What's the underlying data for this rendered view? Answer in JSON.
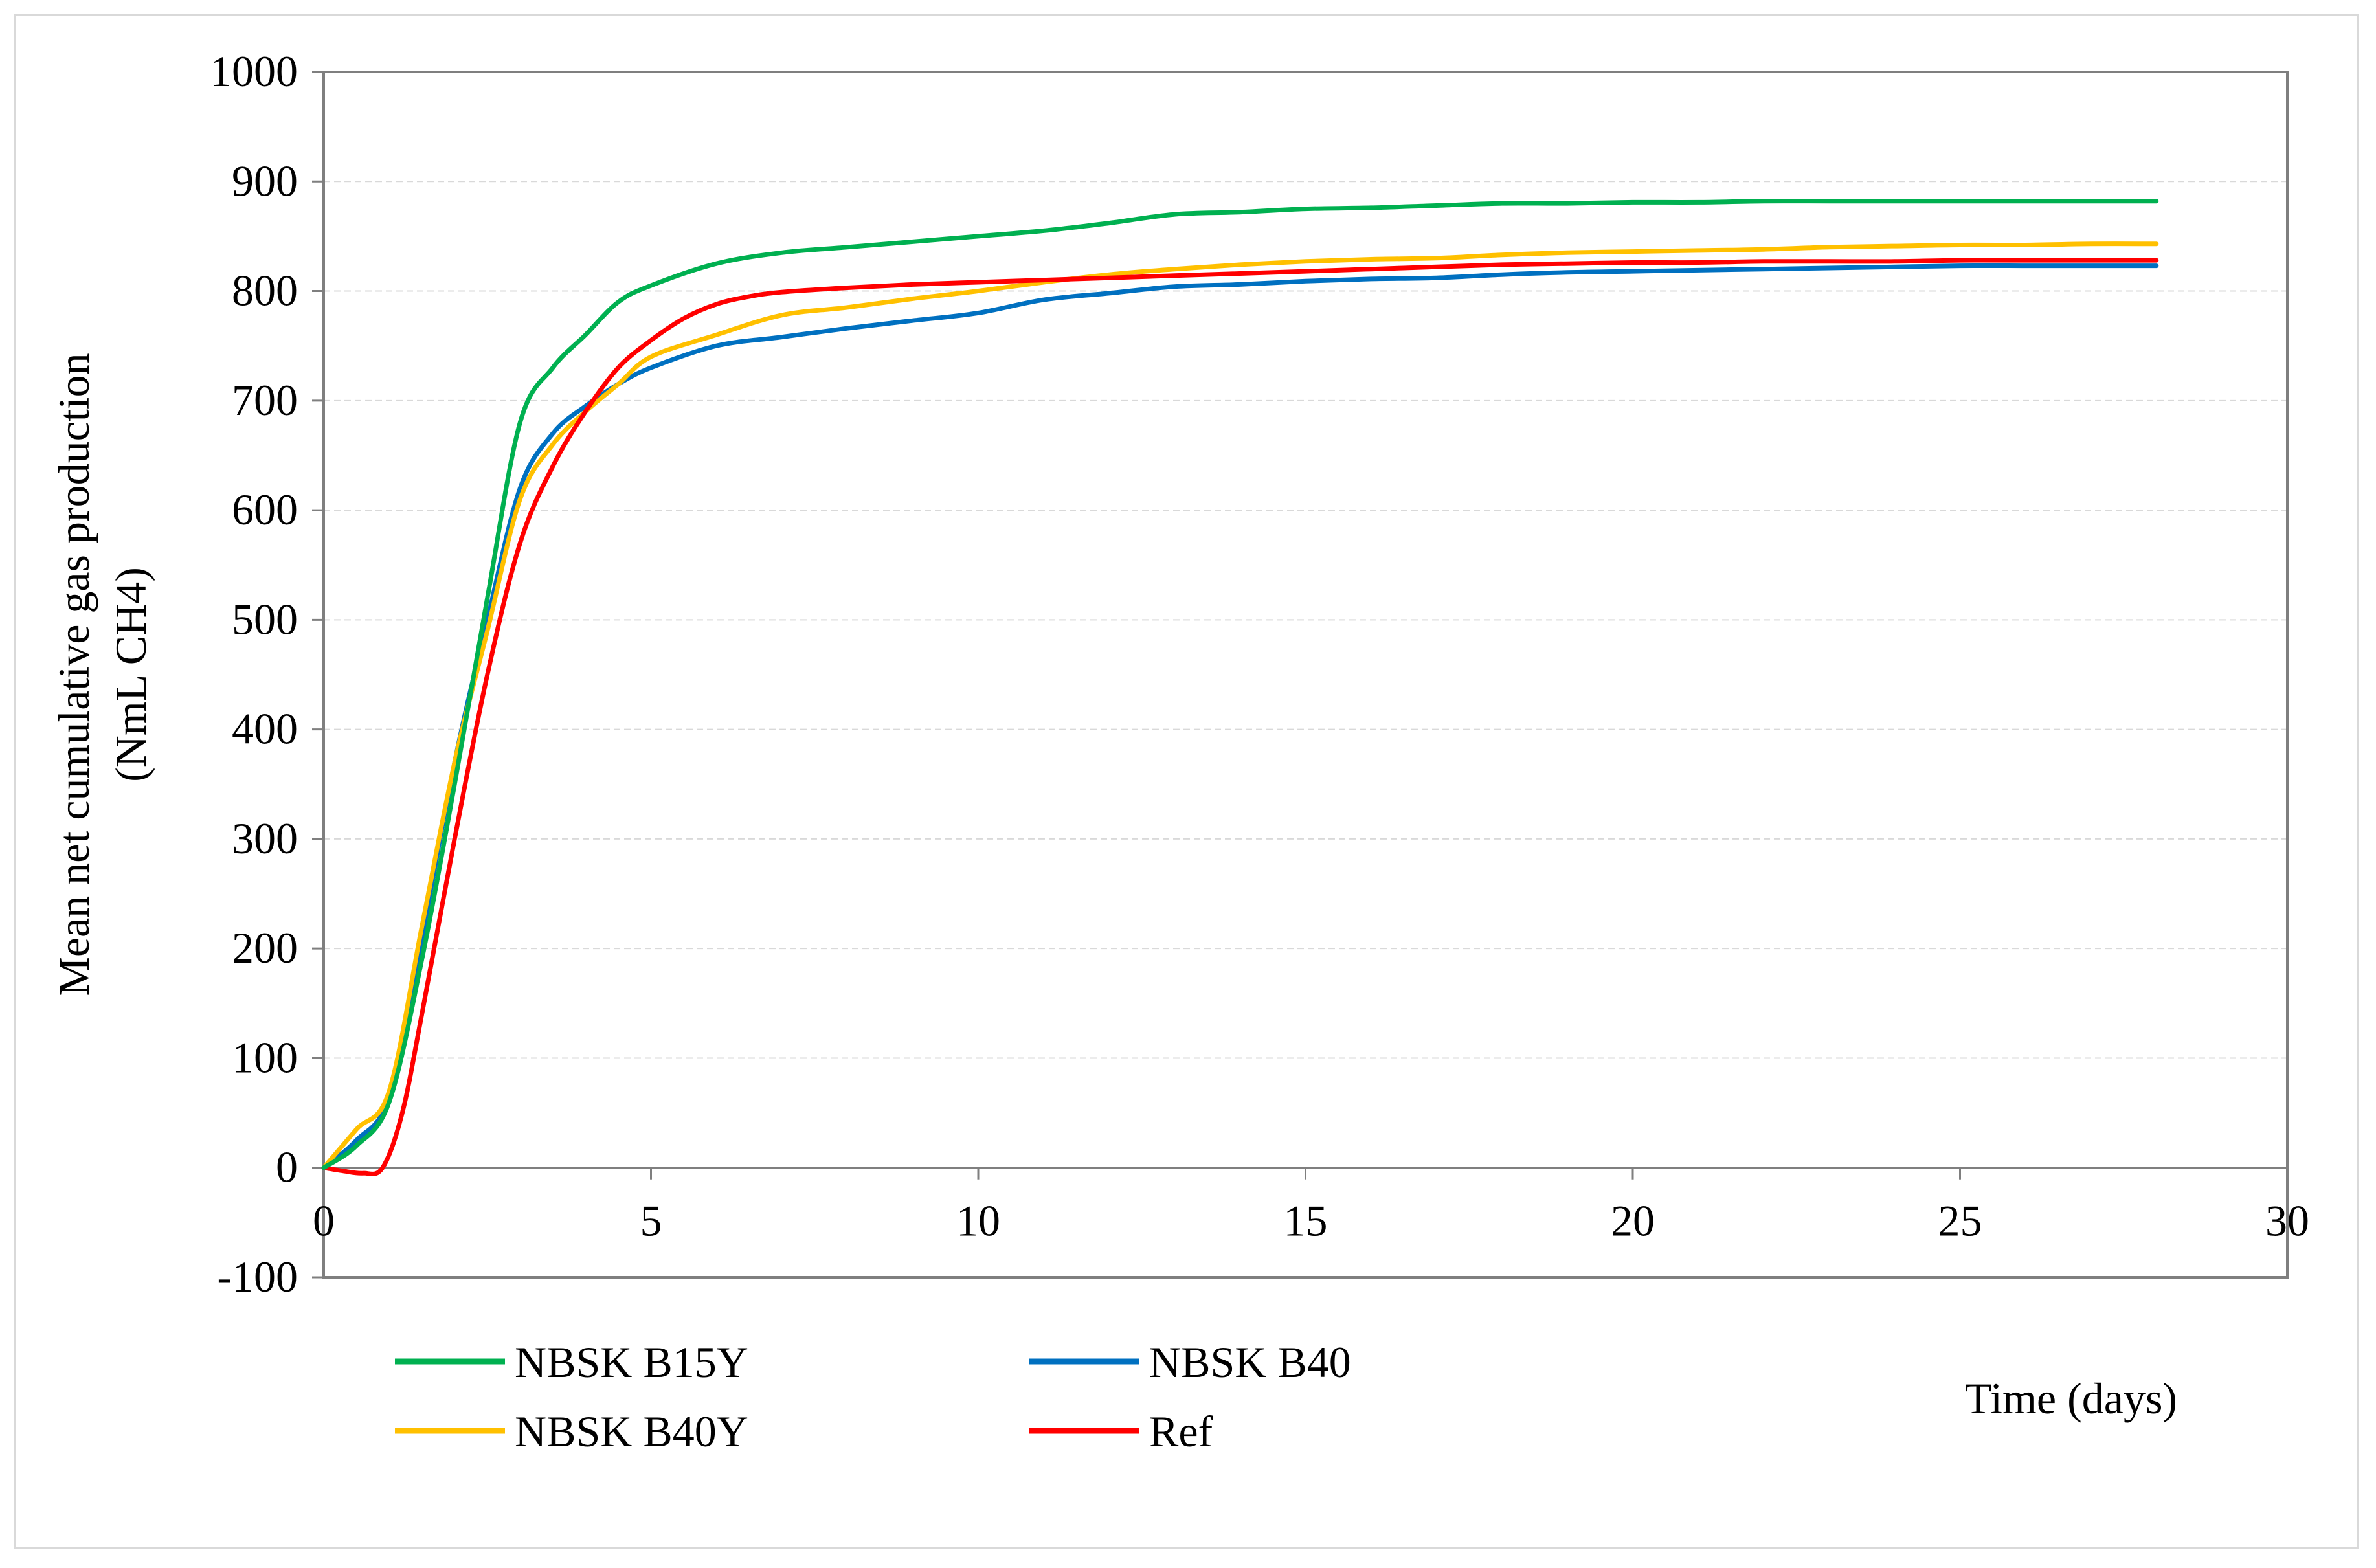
{
  "chart_data": {
    "type": "line",
    "title": "",
    "xlabel": "Time (days)",
    "ylabel_line1": "Mean net cumulative gas production",
    "ylabel_line2": "(NmL CH4)",
    "xlim": [
      0,
      30
    ],
    "ylim": [
      -100,
      1000
    ],
    "xticks": [
      0,
      5,
      10,
      15,
      20,
      25,
      30
    ],
    "yticks": [
      -100,
      0,
      100,
      200,
      300,
      400,
      500,
      600,
      700,
      800,
      900,
      1000
    ],
    "grid": "horizontal dashed",
    "legend_position": "bottom-left",
    "series": [
      {
        "name": "NBSK B15Y",
        "color": "#00b050",
        "x": [
          0,
          0.5,
          1,
          1.5,
          2,
          2.5,
          3,
          3.5,
          4,
          4.5,
          5,
          6,
          7,
          8,
          9,
          10,
          11,
          12,
          13,
          14,
          15,
          16,
          17,
          18,
          19,
          20,
          21,
          22,
          23,
          24,
          25,
          26,
          27,
          28
        ],
        "values": [
          0,
          20,
          60,
          190,
          350,
          520,
          680,
          730,
          760,
          790,
          805,
          825,
          835,
          840,
          845,
          850,
          855,
          862,
          870,
          872,
          875,
          876,
          878,
          880,
          880,
          881,
          881,
          882,
          882,
          882,
          882,
          882,
          882,
          882
        ]
      },
      {
        "name": "NBSK B40",
        "color": "#0070c0",
        "x": [
          0,
          0.5,
          1,
          1.5,
          2,
          2.5,
          3,
          3.5,
          4,
          4.5,
          5,
          6,
          7,
          8,
          9,
          10,
          11,
          12,
          13,
          14,
          15,
          16,
          17,
          18,
          19,
          20,
          21,
          22,
          23,
          24,
          25,
          26,
          27,
          28
        ],
        "values": [
          0,
          25,
          65,
          210,
          370,
          500,
          620,
          670,
          695,
          715,
          730,
          750,
          758,
          766,
          773,
          780,
          792,
          798,
          804,
          806,
          809,
          811,
          812,
          815,
          817,
          818,
          819,
          820,
          821,
          822,
          823,
          823,
          823,
          823
        ]
      },
      {
        "name": "NBSK B40Y",
        "color": "#ffc000",
        "x": [
          0,
          0.5,
          1,
          1.5,
          2,
          2.5,
          3,
          3.5,
          4,
          4.5,
          5,
          6,
          7,
          8,
          9,
          10,
          11,
          12,
          13,
          14,
          15,
          16,
          17,
          18,
          19,
          20,
          21,
          22,
          23,
          24,
          25,
          26,
          27,
          28
        ],
        "values": [
          0,
          35,
          70,
          220,
          370,
          490,
          610,
          660,
          690,
          715,
          740,
          760,
          778,
          785,
          793,
          800,
          808,
          815,
          820,
          824,
          827,
          829,
          830,
          833,
          835,
          836,
          837,
          838,
          840,
          841,
          842,
          842,
          843,
          843
        ]
      },
      {
        "name": "Ref",
        "color": "#ff0000",
        "x": [
          0,
          0.3,
          0.6,
          0.9,
          1.2,
          1.5,
          2,
          2.5,
          3,
          3.5,
          4,
          4.5,
          5,
          5.5,
          6,
          6.5,
          7,
          8,
          9,
          10,
          11,
          12,
          13,
          14,
          15,
          16,
          17,
          18,
          19,
          20,
          21,
          22,
          23,
          24,
          25,
          26,
          27,
          28
        ],
        "values": [
          0,
          -3,
          -5,
          0,
          50,
          140,
          300,
          450,
          570,
          640,
          690,
          730,
          755,
          775,
          788,
          795,
          799,
          803,
          806,
          808,
          810,
          812,
          814,
          816,
          818,
          820,
          822,
          824,
          825,
          826,
          826,
          827,
          827,
          827,
          828,
          828,
          828,
          828
        ]
      }
    ]
  }
}
